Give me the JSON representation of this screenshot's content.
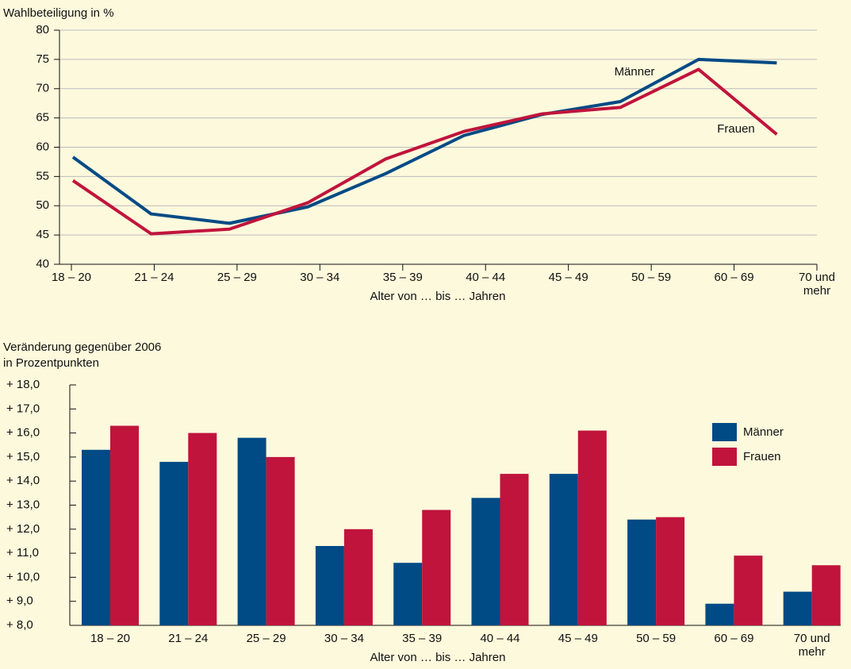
{
  "chart_data": [
    {
      "type": "line",
      "y_label": "Wahlbeteiligung in %",
      "x_label": "Alter von … bis … Jahren",
      "categories": [
        "18 – 20",
        "21 – 24",
        "25 – 29",
        "30 – 34",
        "35 – 39",
        "40 – 44",
        "45 – 49",
        "50 – 59",
        "60 – 69",
        "70 und mehr"
      ],
      "series": [
        {
          "name": "Männer",
          "color": "#004a85",
          "values": [
            58.3,
            48.6,
            47.0,
            49.8,
            55.5,
            62.0,
            65.6,
            67.8,
            75.0,
            74.4
          ]
        },
        {
          "name": "Frauen",
          "color": "#c0143c",
          "values": [
            54.3,
            45.2,
            46.0,
            50.5,
            58.0,
            62.7,
            65.7,
            66.8,
            73.3,
            62.2
          ]
        }
      ],
      "ylim": [
        40,
        80
      ],
      "yticks": [
        40,
        45,
        50,
        55,
        60,
        65,
        70,
        75,
        80
      ],
      "grid": true
    },
    {
      "type": "bar",
      "y_label": [
        "Veränderung gegenüber 2006",
        "in Prozentpunkten"
      ],
      "x_label": "Alter von … bis … Jahren",
      "categories": [
        "18 – 20",
        "21 – 24",
        "25 – 29",
        "30 – 34",
        "35 – 39",
        "40 – 44",
        "45 – 49",
        "50 – 59",
        "60 – 69",
        "70 und mehr"
      ],
      "series": [
        {
          "name": "Männer",
          "color": "#004a85",
          "values": [
            15.3,
            14.8,
            15.8,
            11.3,
            10.6,
            13.3,
            14.3,
            12.4,
            8.9,
            9.4
          ]
        },
        {
          "name": "Frauen",
          "color": "#c0143c",
          "values": [
            16.3,
            16.0,
            15.0,
            12.0,
            12.8,
            14.3,
            16.1,
            12.5,
            10.9,
            10.5
          ]
        }
      ],
      "ylim": [
        8,
        18
      ],
      "yticks": [
        {
          "value": 8,
          "label": "+ 8,0"
        },
        {
          "value": 9,
          "label": "+ 9,0"
        },
        {
          "value": 10,
          "label": "+ 10,0"
        },
        {
          "value": 11,
          "label": "+ 11,0"
        },
        {
          "value": 12,
          "label": "+ 12,0"
        },
        {
          "value": 13,
          "label": "+ 13,0"
        },
        {
          "value": 14,
          "label": "+ 14,0"
        },
        {
          "value": 15,
          "label": "+ 15,0"
        },
        {
          "value": 16,
          "label": "+ 16,0"
        },
        {
          "value": 17,
          "label": "+ 17,0"
        },
        {
          "value": 18,
          "label": "+ 18,0"
        }
      ],
      "grid": false,
      "legend": "top-right"
    }
  ]
}
